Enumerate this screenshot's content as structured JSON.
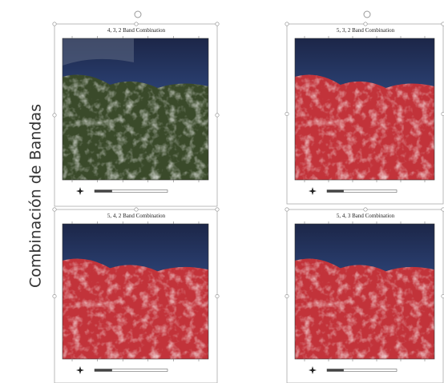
{
  "slide": {
    "side_label": "Combinación de Bandas",
    "panels": [
      {
        "title": "4, 3, 2 Band Combination"
      },
      {
        "title": "5, 3, 2 Band Combination"
      },
      {
        "title": "5, 4, 2 Band Combination"
      },
      {
        "title": "5, 4, 3 Band Combination"
      }
    ]
  }
}
